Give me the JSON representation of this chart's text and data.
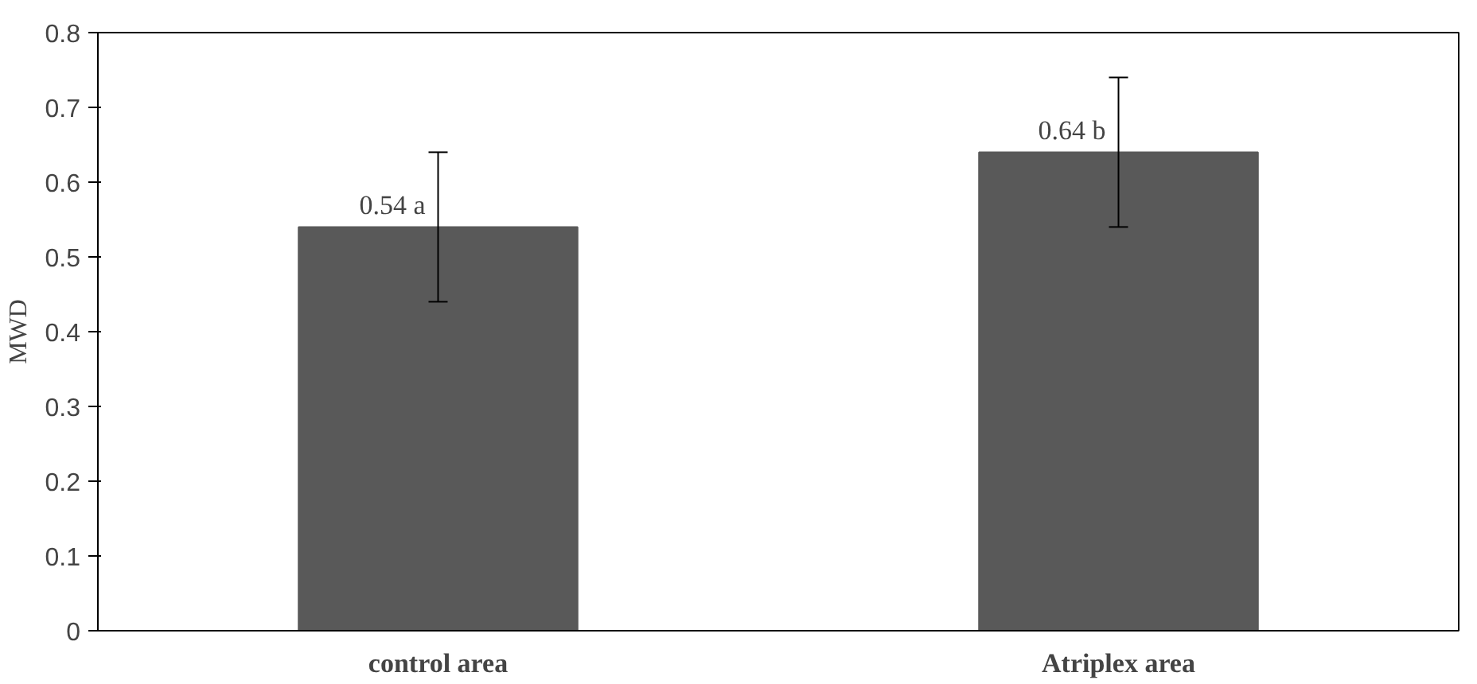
{
  "chart_data": {
    "type": "bar",
    "ylabel": "MWD",
    "categories": [
      "control area",
      "Atriplex area"
    ],
    "values": [
      0.54,
      0.64
    ],
    "color": "#595959",
    "errors": [
      0.1,
      0.1
    ],
    "value_labels": [
      "0.54 a",
      "0.64 b"
    ],
    "ylim": [
      0,
      0.8
    ],
    "yticks": [
      0,
      0.1,
      0.2,
      0.3,
      0.4,
      0.5,
      0.6,
      0.7,
      0.8
    ],
    "grid": false
  }
}
